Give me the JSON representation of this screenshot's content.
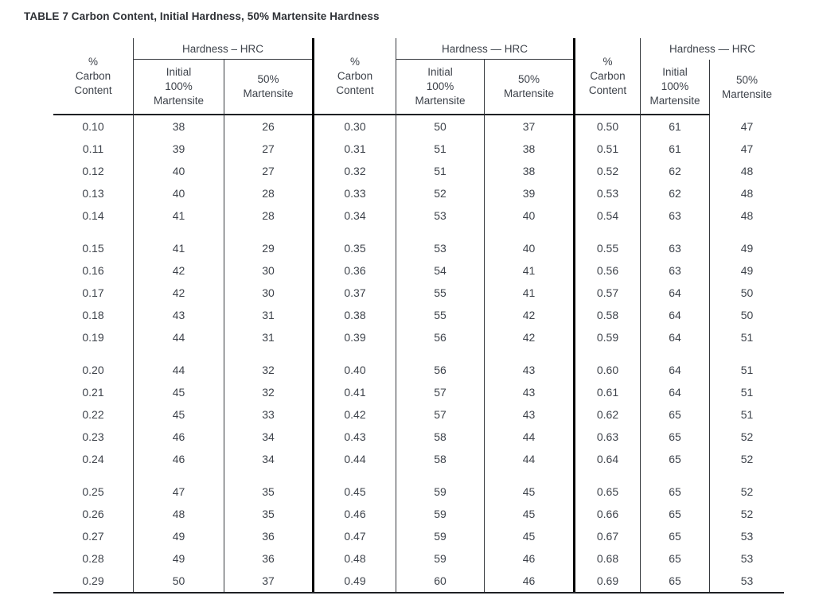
{
  "title": "TABLE 7 Carbon Content, Initial Hardness, 50% Martensite Hardness",
  "table": {
    "band_size": 5,
    "groups": [
      {
        "hardness_header": "Hardness – HRC",
        "col_headers": [
          "%\nCarbon\nContent",
          "Initial\n100%\nMartensite",
          "50%\nMartensite"
        ],
        "rows": [
          [
            "0.10",
            "38",
            "26"
          ],
          [
            "0.11",
            "39",
            "27"
          ],
          [
            "0.12",
            "40",
            "27"
          ],
          [
            "0.13",
            "40",
            "28"
          ],
          [
            "0.14",
            "41",
            "28"
          ],
          [
            "0.15",
            "41",
            "29"
          ],
          [
            "0.16",
            "42",
            "30"
          ],
          [
            "0.17",
            "42",
            "30"
          ],
          [
            "0.18",
            "43",
            "31"
          ],
          [
            "0.19",
            "44",
            "31"
          ],
          [
            "0.20",
            "44",
            "32"
          ],
          [
            "0.21",
            "45",
            "32"
          ],
          [
            "0.22",
            "45",
            "33"
          ],
          [
            "0.23",
            "46",
            "34"
          ],
          [
            "0.24",
            "46",
            "34"
          ],
          [
            "0.25",
            "47",
            "35"
          ],
          [
            "0.26",
            "48",
            "35"
          ],
          [
            "0.27",
            "49",
            "36"
          ],
          [
            "0.28",
            "49",
            "36"
          ],
          [
            "0.29",
            "50",
            "37"
          ]
        ]
      },
      {
        "hardness_header": "Hardness — HRC",
        "col_headers": [
          "%\nCarbon\nContent",
          "Initial\n100%\nMartensite",
          "50%\nMartensite"
        ],
        "rows": [
          [
            "0.30",
            "50",
            "37"
          ],
          [
            "0.31",
            "51",
            "38"
          ],
          [
            "0.32",
            "51",
            "38"
          ],
          [
            "0.33",
            "52",
            "39"
          ],
          [
            "0.34",
            "53",
            "40"
          ],
          [
            "0.35",
            "53",
            "40"
          ],
          [
            "0.36",
            "54",
            "41"
          ],
          [
            "0.37",
            "55",
            "41"
          ],
          [
            "0.38",
            "55",
            "42"
          ],
          [
            "0.39",
            "56",
            "42"
          ],
          [
            "0.40",
            "56",
            "43"
          ],
          [
            "0.41",
            "57",
            "43"
          ],
          [
            "0.42",
            "57",
            "43"
          ],
          [
            "0.43",
            "58",
            "44"
          ],
          [
            "0.44",
            "58",
            "44"
          ],
          [
            "0.45",
            "59",
            "45"
          ],
          [
            "0.46",
            "59",
            "45"
          ],
          [
            "0.47",
            "59",
            "45"
          ],
          [
            "0.48",
            "59",
            "46"
          ],
          [
            "0.49",
            "60",
            "46"
          ]
        ]
      },
      {
        "hardness_header": "Hardness — HRC",
        "col_headers": [
          "%\nCarbon\nContent",
          "Initial\n100%\nMartensite",
          "50%\nMartensite"
        ],
        "rows": [
          [
            "0.50",
            "61",
            "47"
          ],
          [
            "0.51",
            "61",
            "47"
          ],
          [
            "0.52",
            "62",
            "48"
          ],
          [
            "0.53",
            "62",
            "48"
          ],
          [
            "0.54",
            "63",
            "48"
          ],
          [
            "0.55",
            "63",
            "49"
          ],
          [
            "0.56",
            "63",
            "49"
          ],
          [
            "0.57",
            "64",
            "50"
          ],
          [
            "0.58",
            "64",
            "50"
          ],
          [
            "0.59",
            "64",
            "51"
          ],
          [
            "0.60",
            "64",
            "51"
          ],
          [
            "0.61",
            "64",
            "51"
          ],
          [
            "0.62",
            "65",
            "51"
          ],
          [
            "0.63",
            "65",
            "52"
          ],
          [
            "0.64",
            "65",
            "52"
          ],
          [
            "0.65",
            "65",
            "52"
          ],
          [
            "0.66",
            "65",
            "52"
          ],
          [
            "0.67",
            "65",
            "53"
          ],
          [
            "0.68",
            "65",
            "53"
          ],
          [
            "0.69",
            "65",
            "53"
          ]
        ]
      }
    ]
  },
  "colors": {
    "text": "#3e434b",
    "line_thin": "#35383d",
    "line_strong": "#1f2125",
    "line_thick": "#000000",
    "background": "#ffffff"
  }
}
